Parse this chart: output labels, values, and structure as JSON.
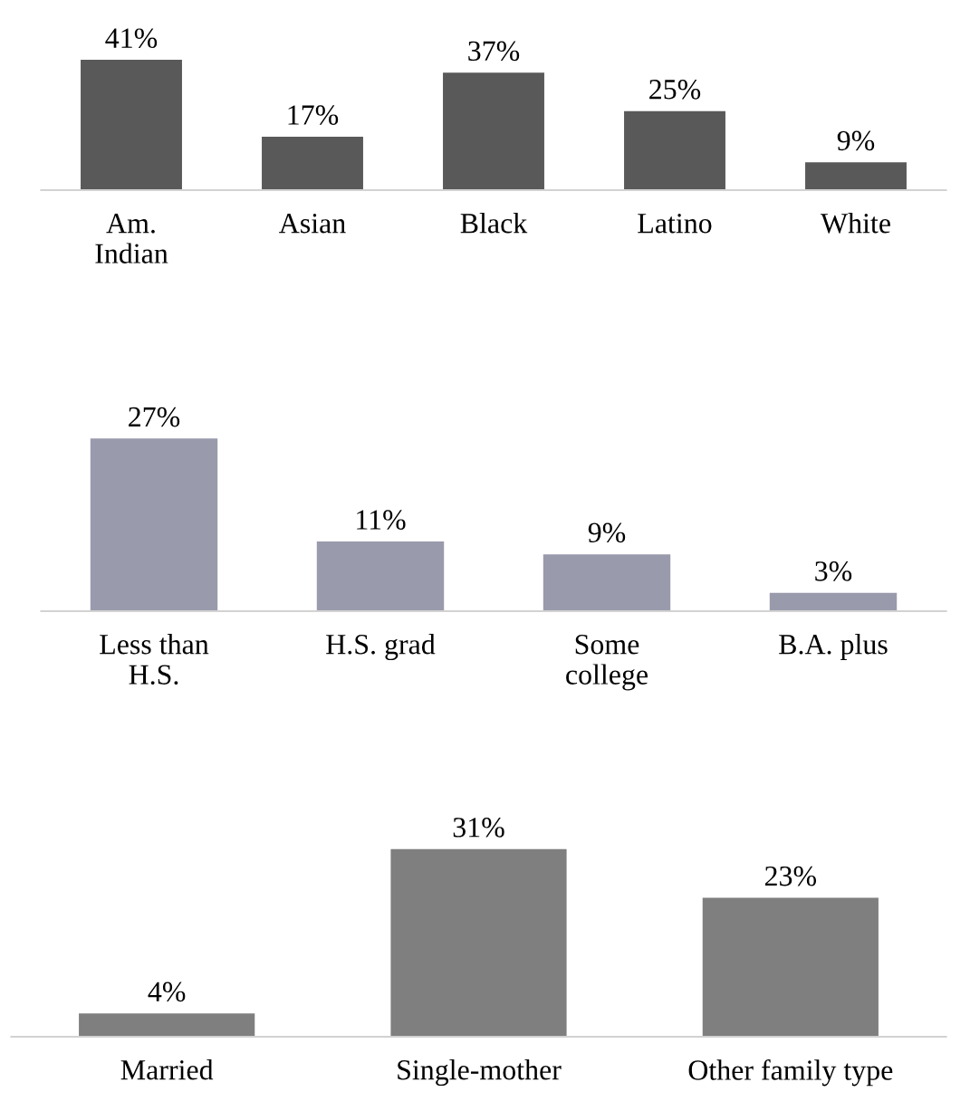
{
  "chart_data": [
    {
      "type": "bar",
      "categories": [
        "Am.\nIndian",
        "Asian",
        "Black",
        "Latino",
        "White"
      ],
      "values": [
        41,
        17,
        37,
        25,
        9
      ],
      "color": "#595959",
      "data_labels": true,
      "value_labels": [
        "41%",
        "17%",
        "37%",
        "25%",
        "9%"
      ],
      "grid": false,
      "legend": false
    },
    {
      "type": "bar",
      "categories": [
        "Less than\nH.S.",
        "H.S. grad",
        "Some\ncollege",
        "B.A. plus"
      ],
      "values": [
        27,
        11,
        9,
        3
      ],
      "color": "#9a9aad",
      "data_labels": true,
      "value_labels": [
        "27%",
        "11%",
        "9%",
        "3%"
      ],
      "grid": false,
      "legend": false
    },
    {
      "type": "bar",
      "categories": [
        "Married",
        "Single-mother",
        "Other family type"
      ],
      "values": [
        4,
        31,
        23
      ],
      "color": "#7f7f7f",
      "data_labels": true,
      "value_labels": [
        "4%",
        "31%",
        "23%"
      ],
      "grid": false,
      "legend": false
    }
  ]
}
